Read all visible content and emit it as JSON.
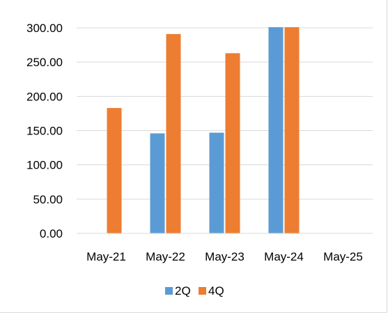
{
  "chart_data": {
    "type": "bar",
    "title": "",
    "xlabel": "",
    "ylabel": "",
    "categories": [
      "May-21",
      "May-22",
      "May-23",
      "May-24",
      "May-25"
    ],
    "series": [
      {
        "name": "2Q",
        "color": "#5B9BD5",
        "values": [
          null,
          146,
          147,
          301,
          null
        ]
      },
      {
        "name": "4Q",
        "color": "#ED7D31",
        "values": [
          183,
          291,
          263,
          301,
          null
        ]
      }
    ],
    "ylim": [
      0,
      300
    ],
    "yticks": [
      "0.00",
      "50.00",
      "100.00",
      "150.00",
      "200.00",
      "250.00",
      "300.00"
    ],
    "grid": true,
    "legend": "bottom"
  }
}
